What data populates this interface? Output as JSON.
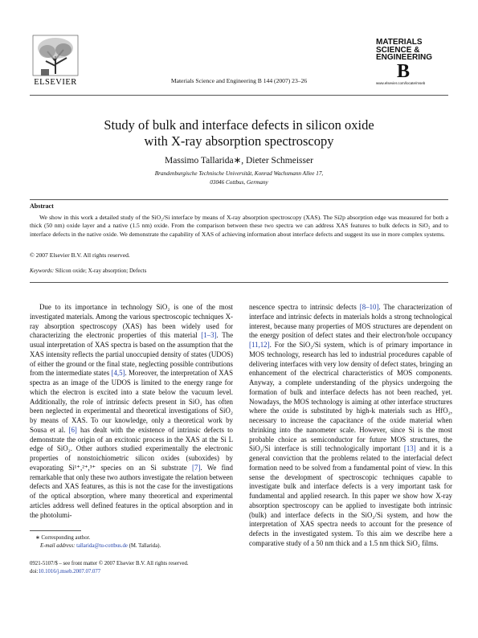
{
  "header": {
    "publisher": "ELSEVIER",
    "citation": "Materials Science and Engineering B  144 (2007) 23–26",
    "journal_logo": [
      "MATERIALS",
      "SCIENCE &",
      "ENGINEERING",
      "B"
    ],
    "journal_url": "www.elsevier.com/locate/mseb"
  },
  "article": {
    "title": [
      "Study of bulk and interface defects in silicon oxide",
      "with X-ray absorption spectroscopy"
    ],
    "authors": "Massimo Tallarida∗, Dieter Schmeisser",
    "affiliation": [
      "Brandenburgische Technische Universität, Konrad Wachsmann Allee 17,",
      "03046 Cottbus, Germany"
    ]
  },
  "abstract": {
    "heading": "Abstract",
    "text": "We show in this work a detailed study of the SiO₂/Si interface by means of X-ray absorption spectroscopy (XAS). The Si2p absorption edge was measured for both a thick (50 nm) oxide layer and a native (1.5 nm) oxide. From the comparison between these two spectra we can address XAS features to bulk defects in SiO₂ and to interface defects in the native oxide. We demonstrate the capability of XAS of achieving information about interface defects and suggest its use in more complex systems.",
    "copyright": "© 2007 Elsevier B.V. All rights reserved.",
    "keywords_label": "Keywords:",
    "keywords": "Silicon oxide; X-ray absorption; Defects"
  },
  "body": {
    "left": [
      "Due to its importance in technology SiO₂ is one of the most investigated materials. Among the various spectroscopic techniques X-ray absorption spectroscopy (XAS) has been widely used for characterizing the electronic properties of this material ",
      "[1–3]",
      ". The usual interpretation of XAS spectra is based on the assumption that the XAS intensity reflects the partial unoccupied density of states (UDOS) of either the ground or the final state, neglecting possible contributions from the intermediate states ",
      "[4,5]",
      ". Moreover, the interpretation of XAS spectra as an image of the UDOS is limited to the energy range for which the electron is excited into a state below the vacuum level. Additionally, the role of intrinsic defects present in SiO₂ has often been neglected in experimental and theoretical investigations of SiO₂ by means of XAS. To our knowledge, only a theoretical work by Sousa et al. ",
      "[6]",
      " has dealt with the existence of intrinsic defects to demonstrate the origin of an excitonic process in the XAS at the Si L edge of SiO₂. Other authors studied experimentally the electronic properties of nonstoichiometric silicon oxides (suboxides) by evaporating Si¹⁺,²⁺,³⁺ species on an Si substrate ",
      "[7]",
      ". We find remarkable that only these two authors investigate the relation between defects and XAS features, as this is not the case for the investigations of the optical absorption, where many theoretical and experimental articles address well defined features in the optical absorption and in the photolumi-"
    ],
    "right": [
      "nescence spectra to intrinsic defects ",
      "[8–10]",
      ". The characterization of interface and intrinsic defects in materials holds a strong technological interest, because many properties of MOS structures are dependent on the energy position of defect states and their electron/hole occupancy ",
      "[11,12]",
      ". For the SiO₂/Si system, which is of primary importance in MOS technology, research has led to industrial procedures capable of delivering interfaces with very low density of defect states, bringing an enhancement of the electrical characteristics of MOS components. Anyway, a complete understanding of the physics undergoing the formation of bulk and interface defects has not been reached, yet. Nowadays, the MOS technology is aiming at other interface structures where the oxide is substituted by high-k materials such as HfO₂, necessary to increase the capacitance of the oxide material when shrinking into the nanometer scale. However, since Si is the most probable choice as semiconductor for future MOS structures, the SiO₂/Si interface is still technologically important ",
      "[13]",
      " and it is a general conviction that the problems related to the interfacial defect formation need to be solved from a fundamental point of view. In this sense the development of spectroscopic techniques capable to investigate bulk and interface defects is a very important task for fundamental and applied research. In this paper we show how X-ray absorption spectroscopy can be applied to investigate both intrinsic (bulk) and interface defects in the SiO₂/Si system, and how the interpretation of XAS spectra needs to account for the presence of defects in the investigated system. To this aim we describe here a comparative study of a 50 nm thick and a 1.5 nm thick SiO₂ films."
    ]
  },
  "footnote": {
    "corresponding": "∗  Corresponding author.",
    "email_label": "E-mail address:",
    "email": "tallarida@tu-cottbus.de",
    "email_owner": " (M. Tallarida)."
  },
  "footer": {
    "issn": "0921-5107/$ – see front matter © 2007 Elsevier B.V. All rights reserved.",
    "doi_label": "doi:",
    "doi": "10.1016/j.mseb.2007.07.077"
  }
}
